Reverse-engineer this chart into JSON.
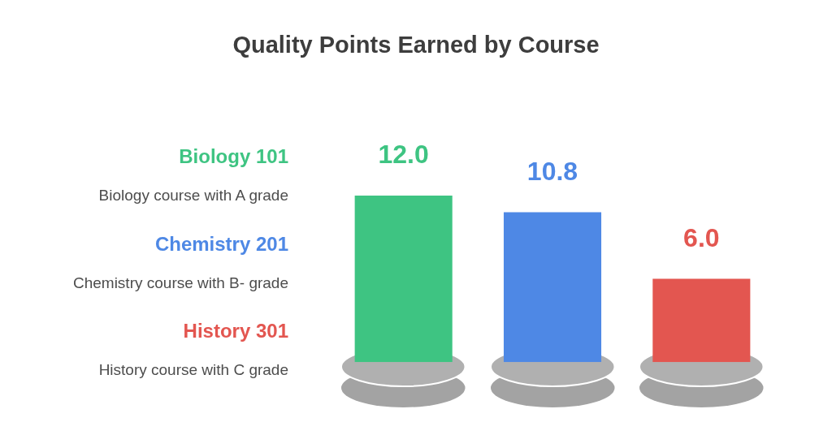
{
  "chart_data": {
    "type": "bar",
    "title": "Quality Points Earned by Course",
    "categories": [
      null,
      null,
      null
    ],
    "values": [
      12.0,
      10.8,
      6.0
    ],
    "colors": [
      "#3ec482",
      "#4e88e5",
      "#e35650"
    ],
    "value_labels": [
      "12.0",
      "10.8",
      "6.0"
    ],
    "annotations": [
      "Biology 101",
      "Biology course with A grade",
      "Chemistry 201",
      "Chemistry course with B- grade",
      "History 301",
      "History course with C grade"
    ]
  }
}
